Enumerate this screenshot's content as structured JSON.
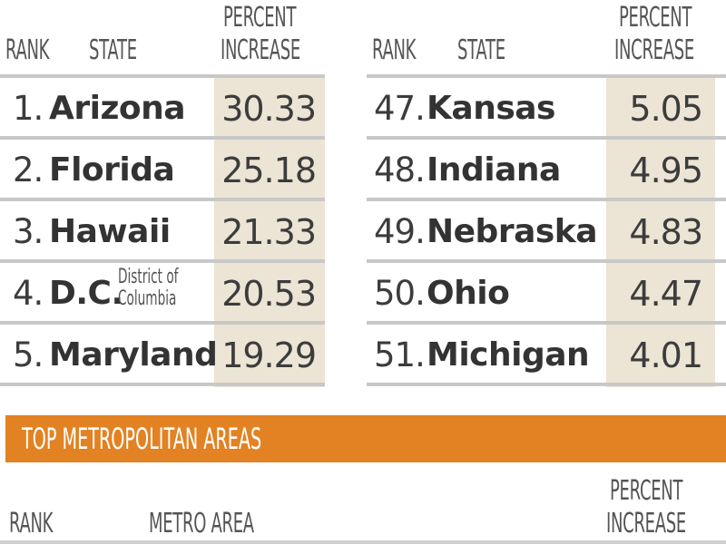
{
  "states": {
    "headers": {
      "rank": "RANK",
      "state": "STATE",
      "percent_line1": "PERCENT",
      "percent_line2": "INCREASE"
    },
    "top": [
      {
        "rank": "1.",
        "state": "Arizona",
        "note": "",
        "value": "30.33"
      },
      {
        "rank": "2.",
        "state": "Florida",
        "note": "",
        "value": "25.18"
      },
      {
        "rank": "3.",
        "state": "Hawaii",
        "note": "",
        "value": "21.33"
      },
      {
        "rank": "4.",
        "state": "D.C.",
        "note": [
          "District of",
          "Columbia"
        ],
        "value": "20.53"
      },
      {
        "rank": "5.",
        "state": "Maryland",
        "note": "",
        "value": "19.29"
      }
    ],
    "bottom": [
      {
        "rank": "47.",
        "state": "Kansas",
        "value": "5.05"
      },
      {
        "rank": "48.",
        "state": "Indiana",
        "value": "4.95"
      },
      {
        "rank": "49.",
        "state": "Nebraska",
        "value": "4.83"
      },
      {
        "rank": "50.",
        "state": "Ohio",
        "value": "4.47"
      },
      {
        "rank": "51.",
        "state": "Michigan",
        "value": "4.01"
      }
    ]
  },
  "metro": {
    "title": "TOP METROPOLITAN AREAS",
    "headers": {
      "rank": "RANK",
      "area": "METRO AREA",
      "percent_line1": "PERCENT",
      "percent_line2": "INCREASE"
    }
  },
  "colors": {
    "banner": "#e38222",
    "shade": "#ece4d4",
    "rule": "#c8c8c8"
  }
}
